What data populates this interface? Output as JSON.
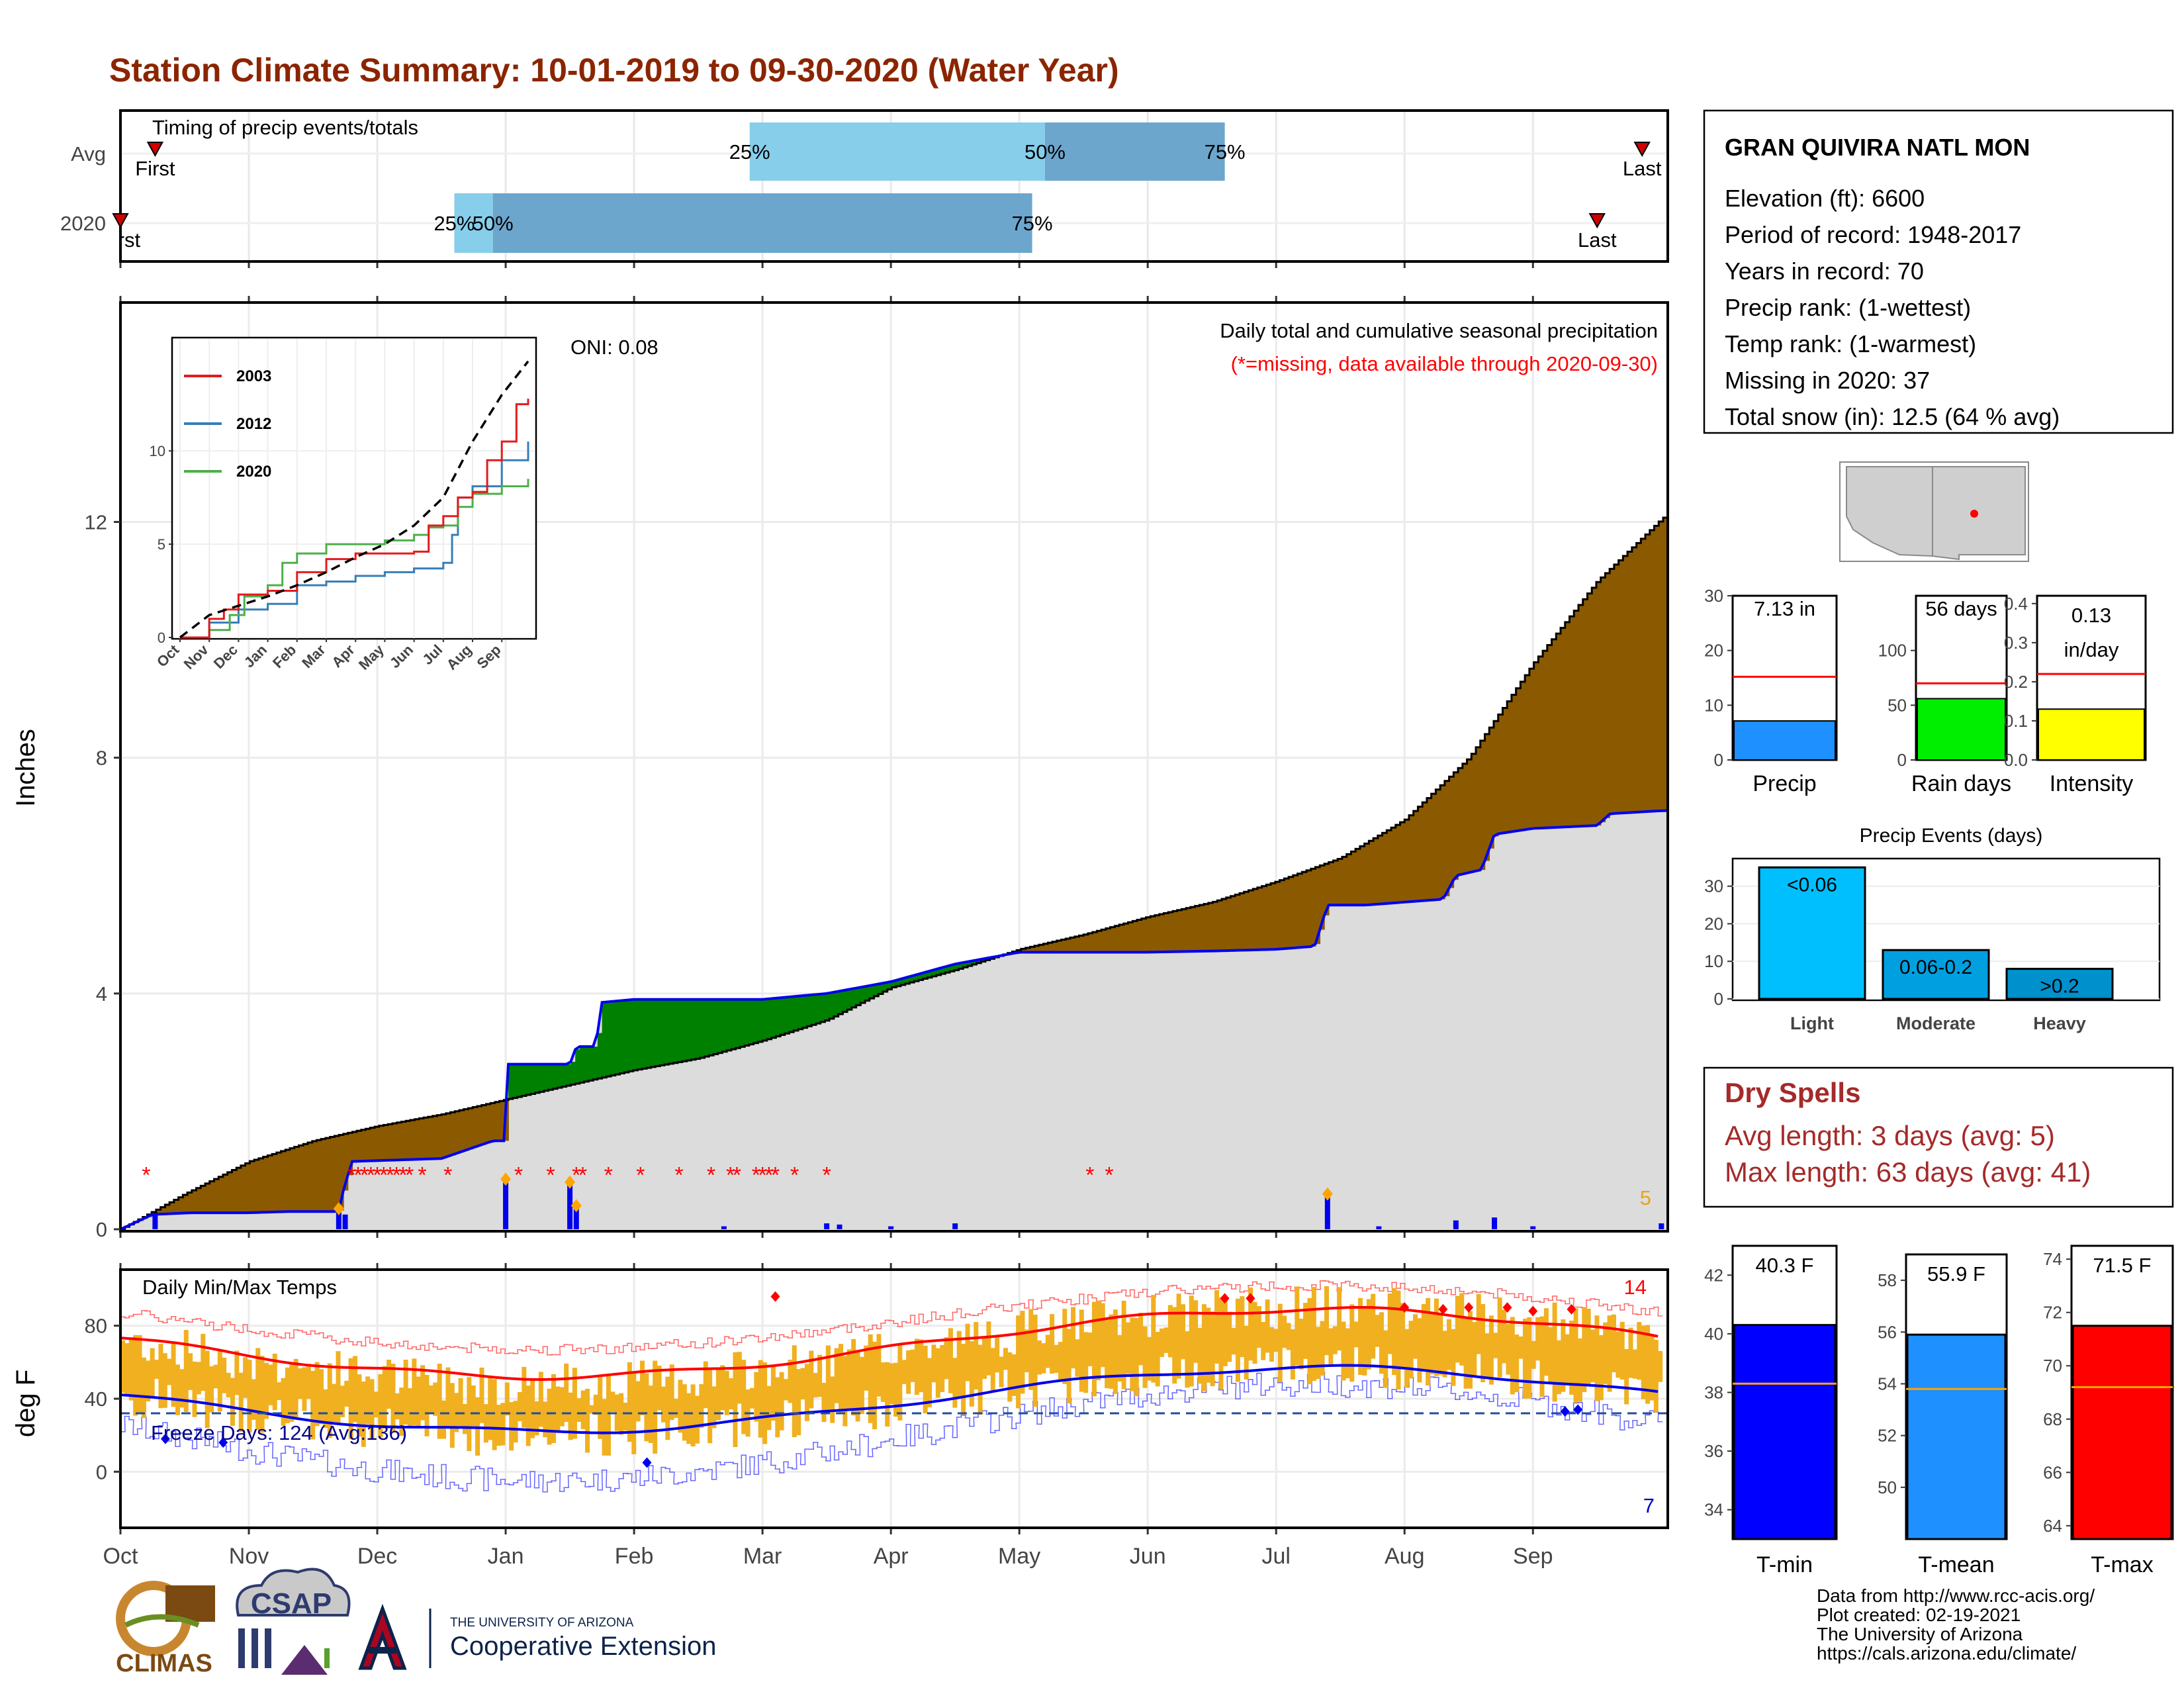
{
  "title": "Station Climate Summary: 10-01-2019 to 09-30-2020 (Water Year)",
  "colors": {
    "title": "#8B2500",
    "brown": "#8B5A00",
    "green": "#008000",
    "gray_fill": "#DCDCDC",
    "blue_line": "#0000EE",
    "light_bar": "#87CEEB",
    "mid_bar": "#6CA6CD",
    "orange": "#E8A317",
    "red": "#FF0000",
    "dry_text": "#A52A2A"
  },
  "timing_panel": {
    "title": "Timing of precip events/totals",
    "rows": [
      {
        "label": "Avg",
        "first_label": "First",
        "last_label": "Last",
        "first": 0.27,
        "p25": 4.9,
        "p50": 7.2,
        "p75": 8.6,
        "last": 11.85,
        "p25_label": "25%",
        "p50_label": "50%",
        "p75_label": "75%"
      },
      {
        "label": "2020",
        "first_label": "First",
        "last_label": "Last",
        "first": 0.0,
        "p25": 2.6,
        "p50": 2.9,
        "p75": 7.1,
        "last": 11.5,
        "p25_label": "25%",
        "p50_label": "50%",
        "p75_label": "75%"
      }
    ]
  },
  "precip_panel": {
    "title": "Daily total and cumulative seasonal precipitation",
    "subtitle": "(*=missing, data available through 2020-09-30)",
    "oni": "ONI: 0.08",
    "ylabel": "Inches",
    "yticks": [
      "0",
      "4",
      "8",
      "12"
    ],
    "ylim": [
      0,
      15.7
    ],
    "corner_count": "5",
    "avg_cumulative": [
      [
        0,
        0
      ],
      [
        0.5,
        0.6
      ],
      [
        1,
        1.15
      ],
      [
        1.5,
        1.5
      ],
      [
        2,
        1.75
      ],
      [
        2.5,
        1.95
      ],
      [
        3,
        2.2
      ],
      [
        3.5,
        2.45
      ],
      [
        4,
        2.7
      ],
      [
        4.5,
        2.9
      ],
      [
        5,
        3.2
      ],
      [
        5.5,
        3.55
      ],
      [
        6,
        4.1
      ],
      [
        6.5,
        4.4
      ],
      [
        7,
        4.75
      ],
      [
        7.5,
        5.0
      ],
      [
        8,
        5.3
      ],
      [
        8.5,
        5.55
      ],
      [
        9,
        5.9
      ],
      [
        9.5,
        6.3
      ],
      [
        10,
        6.95
      ],
      [
        10.5,
        8.0
      ],
      [
        11,
        9.6
      ],
      [
        11.5,
        11.0
      ],
      [
        12,
        12.05
      ],
      [
        12.4,
        12.7
      ],
      [
        12.5,
        12.8
      ]
    ],
    "cum_2020": [
      [
        0,
        0
      ],
      [
        0.25,
        0.25
      ],
      [
        0.55,
        0.28
      ],
      [
        1,
        0.28
      ],
      [
        1.3,
        0.3
      ],
      [
        1.7,
        0.3
      ],
      [
        1.72,
        0.55
      ],
      [
        1.75,
        0.75
      ],
      [
        1.8,
        1.15
      ],
      [
        2.5,
        1.2
      ],
      [
        2.9,
        1.5
      ],
      [
        3.0,
        1.5
      ],
      [
        3.02,
        2.8
      ],
      [
        3.5,
        2.8
      ],
      [
        3.55,
        3.1
      ],
      [
        3.7,
        3.1
      ],
      [
        3.75,
        3.85
      ],
      [
        4.0,
        3.9
      ],
      [
        5.0,
        3.9
      ],
      [
        5.5,
        4.0
      ],
      [
        6.0,
        4.2
      ],
      [
        6.5,
        4.5
      ],
      [
        7.0,
        4.7
      ],
      [
        8.0,
        4.7
      ],
      [
        8.5,
        4.72
      ],
      [
        9.0,
        4.75
      ],
      [
        9.3,
        4.8
      ],
      [
        9.4,
        5.5
      ],
      [
        9.7,
        5.5
      ],
      [
        10.0,
        5.55
      ],
      [
        10.3,
        5.6
      ],
      [
        10.4,
        6.0
      ],
      [
        10.6,
        6.1
      ],
      [
        10.7,
        6.7
      ],
      [
        11.0,
        6.8
      ],
      [
        11.5,
        6.85
      ],
      [
        11.6,
        7.05
      ],
      [
        12.0,
        7.1
      ],
      [
        12.5,
        7.13
      ]
    ],
    "daily_bars": [
      [
        0.27,
        0.25
      ],
      [
        1.7,
        0.35
      ],
      [
        1.75,
        0.25
      ],
      [
        3.0,
        0.85
      ],
      [
        3.5,
        0.8
      ],
      [
        3.55,
        0.4
      ],
      [
        4.7,
        0.05
      ],
      [
        5.5,
        0.1
      ],
      [
        5.6,
        0.08
      ],
      [
        6.0,
        0.05
      ],
      [
        6.5,
        0.1
      ],
      [
        9.4,
        0.6
      ],
      [
        9.8,
        0.05
      ],
      [
        10.4,
        0.15
      ],
      [
        10.7,
        0.2
      ],
      [
        11.0,
        0.05
      ],
      [
        12.0,
        0.1
      ]
    ],
    "missing_markers": [
      0.2,
      1.8,
      1.85,
      1.9,
      1.95,
      2.0,
      2.05,
      2.1,
      2.15,
      2.2,
      2.25,
      2.35,
      2.55,
      3.1,
      3.35,
      3.55,
      3.6,
      3.8,
      4.05,
      4.35,
      4.6,
      4.75,
      4.8,
      4.95,
      5.0,
      5.05,
      5.1,
      5.25,
      5.5,
      7.55,
      7.7
    ],
    "x_months": [
      "Oct",
      "Nov",
      "Dec",
      "Jan",
      "Feb",
      "Mar",
      "Apr",
      "May",
      "Jun",
      "Jul",
      "Aug",
      "Sep"
    ]
  },
  "inset": {
    "series": [
      {
        "name": "2003",
        "color": "#E41A1C"
      },
      {
        "name": "2012",
        "color": "#377EB8"
      },
      {
        "name": "2020",
        "color": "#4DAF4A"
      }
    ],
    "yticks": [
      "0",
      "5",
      "10"
    ],
    "xticks": [
      "Oct",
      "Nov",
      "Dec",
      "Jan",
      "Feb",
      "Mar",
      "Apr",
      "May",
      "Jun",
      "Jul",
      "Aug",
      "Sep"
    ]
  },
  "station": {
    "name": "GRAN QUIVIRA NATL MON",
    "lines": [
      "Elevation (ft): 6600",
      "Period of record: 1948-2017",
      "Years in record: 70",
      "Precip rank:  (1-wettest)",
      "Temp rank:  (1-warmest)",
      "Missing in 2020: 37",
      "Total snow (in): 12.5 (64 % avg)"
    ]
  },
  "mini_bars": [
    {
      "label": "Precip",
      "value_text": "7.13 in",
      "value": 7.13,
      "avg": 15.2,
      "max": 30,
      "yticks": [
        "0",
        "10",
        "20",
        "30"
      ],
      "color": "#1E90FF"
    },
    {
      "label": "Rain days",
      "value_text": "56 days",
      "value": 56,
      "avg": 70,
      "max": 150,
      "yticks": [
        "0",
        "50",
        "100"
      ],
      "color": "#00EE00"
    },
    {
      "label": "Intensity",
      "value_text_1": "0.13",
      "value_text_2": "in/day",
      "value": 0.13,
      "avg": 0.22,
      "max": 0.42,
      "yticks": [
        "0.0",
        "0.1",
        "0.2",
        "0.3",
        "0.4"
      ],
      "color": "#FFFF00"
    }
  ],
  "events": {
    "title": "Precip Events (days)",
    "categories": [
      "Light",
      "Moderate",
      "Heavy"
    ],
    "labels": [
      "<0.06",
      "0.06-0.2",
      ">0.2"
    ],
    "values": [
      35,
      13,
      8
    ],
    "yticks": [
      "0",
      "10",
      "20",
      "30"
    ],
    "colors": [
      "#00BFFF",
      "#00A0E0",
      "#0090CC"
    ]
  },
  "dry_spells": {
    "title": "Dry Spells",
    "avg": "Avg length: 3 days (avg: 5)",
    "max": "Max length: 63 days (avg: 41)"
  },
  "temp_panel": {
    "title": "Daily Min/Max Temps",
    "ylabel": "deg F",
    "yticks": [
      "0",
      "40",
      "80"
    ],
    "freeze": "Freeze Days: 124 (Avg:136)",
    "count_hot": "14",
    "count_cold": "7"
  },
  "temp_bars": [
    {
      "label": "T-min",
      "value_text": "40.3 F",
      "value": 40.3,
      "avg": 38.3,
      "min": 33,
      "max": 43,
      "yticks": [
        "34",
        "36",
        "38",
        "40",
        "42"
      ],
      "color": "#0000FF"
    },
    {
      "label": "T-mean",
      "value_text": "55.9 F",
      "value": 55.9,
      "avg": 53.8,
      "min": 48,
      "max": 59,
      "yticks": [
        "50",
        "52",
        "54",
        "56",
        "58"
      ],
      "color": "#1E90FF"
    },
    {
      "label": "T-max",
      "value_text": "71.5 F",
      "value": 71.5,
      "avg": 69.2,
      "min": 63.5,
      "max": 74.5,
      "yticks": [
        "64",
        "66",
        "68",
        "70",
        "72",
        "74"
      ],
      "color": "#FF0000"
    }
  ],
  "footer": {
    "lines": [
      "Data from http://www.rcc-acis.org/",
      "Plot created: 02-19-2021",
      "The University of Arizona",
      "https://cals.arizona.edu/climate/"
    ],
    "logo_climas": "CLIMAS",
    "logo_csap": "CSAP",
    "logo_ua_small": "THE UNIVERSITY OF ARIZONA",
    "logo_ua_big": "Cooperative Extension"
  }
}
